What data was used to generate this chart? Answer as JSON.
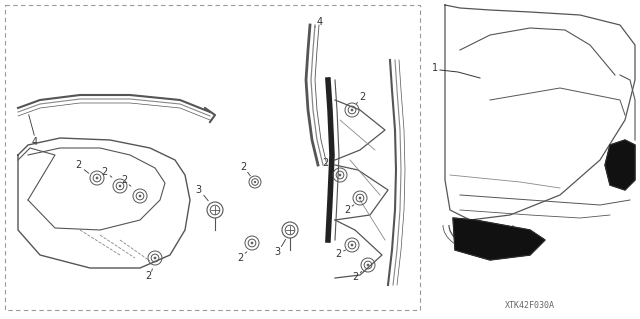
{
  "bg_color": "#ffffff",
  "text_color": "#333333",
  "figure_size": [
    6.4,
    3.19
  ],
  "dpi": 100,
  "diagram_label": "XTK42F030A",
  "line_color": "#555555",
  "line_color2": "#888888"
}
